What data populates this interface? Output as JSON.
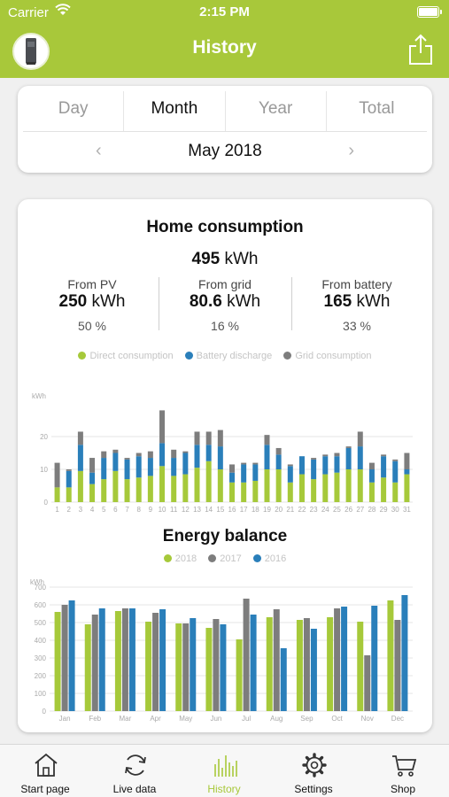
{
  "status_bar": {
    "carrier": "Carrier",
    "time": "2:15 PM"
  },
  "header": {
    "title": "History"
  },
  "period_selector": {
    "tabs": [
      {
        "label": "Day",
        "active": false
      },
      {
        "label": "Month",
        "active": true
      },
      {
        "label": "Year",
        "active": false
      },
      {
        "label": "Total",
        "active": false
      }
    ],
    "current_period": "May 2018"
  },
  "home_consumption": {
    "title": "Home consumption",
    "total_value": "495",
    "total_unit": "kWh",
    "stats": [
      {
        "label": "From PV",
        "value": "250",
        "unit": "kWh",
        "percent": "50 %"
      },
      {
        "label": "From grid",
        "value": "80.6",
        "unit": "kWh",
        "percent": "16 %"
      },
      {
        "label": "From battery",
        "value": "165",
        "unit": "kWh",
        "percent": "33 %"
      }
    ],
    "legend": [
      {
        "label": "Direct consumption",
        "color": "#a6c93a"
      },
      {
        "label": "Battery discharge",
        "color": "#2a7fba"
      },
      {
        "label": "Grid consumption",
        "color": "#7d7d7d"
      }
    ]
  },
  "energy_balance": {
    "title": "Energy balance"
  },
  "chart_data": [
    {
      "type": "bar",
      "stacked": true,
      "ylabel": "kWh",
      "ylim": [
        0,
        30
      ],
      "yticks": [
        0,
        10,
        20
      ],
      "categories": [
        "1",
        "2",
        "3",
        "4",
        "5",
        "6",
        "7",
        "8",
        "9",
        "10",
        "11",
        "12",
        "13",
        "14",
        "15",
        "16",
        "17",
        "18",
        "19",
        "20",
        "21",
        "22",
        "23",
        "24",
        "25",
        "26",
        "27",
        "28",
        "29",
        "30",
        "31"
      ],
      "series": [
        {
          "name": "Direct consumption",
          "color": "#a6c93a",
          "values": [
            4.5,
            4.5,
            9.5,
            5.5,
            7,
            9.5,
            7,
            7.5,
            8,
            11,
            8,
            8.5,
            10.5,
            12.5,
            10,
            6,
            6,
            6.5,
            10,
            10,
            6,
            8.5,
            7,
            8.5,
            9,
            10,
            10,
            6,
            7.5,
            6,
            8.5
          ]
        },
        {
          "name": "Battery discharge",
          "color": "#2a7fba",
          "values": [
            0,
            5,
            8,
            3.5,
            6.5,
            5.5,
            6,
            6.5,
            5.5,
            7,
            5.5,
            6.5,
            7,
            5,
            7,
            3,
            5.5,
            5,
            7.5,
            4.5,
            5,
            5.5,
            6,
            5.5,
            5,
            6.5,
            7,
            4,
            6.5,
            6.5,
            1.5
          ]
        },
        {
          "name": "Grid consumption",
          "color": "#7d7d7d",
          "values": [
            7.5,
            0.5,
            4,
            4.5,
            2,
            1,
            0.5,
            1,
            2,
            10,
            2.5,
            0.5,
            4,
            4,
            5,
            2.5,
            0.5,
            0.5,
            3,
            2,
            0.5,
            0,
            0.5,
            0.5,
            1,
            0.5,
            4.5,
            2,
            0.5,
            0.5,
            5
          ]
        }
      ]
    },
    {
      "type": "bar",
      "stacked": false,
      "ylabel": "kWh",
      "ylim": [
        0,
        700
      ],
      "yticks": [
        0,
        100,
        200,
        300,
        400,
        500,
        600,
        700
      ],
      "categories": [
        "Jan",
        "Feb",
        "Mar",
        "Apr",
        "May",
        "Jun",
        "Jul",
        "Aug",
        "Sep",
        "Oct",
        "Nov",
        "Dec"
      ],
      "series": [
        {
          "name": "2018",
          "color": "#a6c93a",
          "values": [
            560,
            490,
            565,
            505,
            495,
            470,
            405,
            530,
            515,
            530,
            505,
            625
          ]
        },
        {
          "name": "2017",
          "color": "#7d7d7d",
          "values": [
            600,
            545,
            580,
            555,
            495,
            520,
            635,
            575,
            525,
            580,
            315,
            515
          ]
        },
        {
          "name": "2016",
          "color": "#2a7fba",
          "values": [
            625,
            580,
            580,
            575,
            525,
            490,
            545,
            355,
            465,
            590,
            595,
            655
          ]
        }
      ]
    }
  ],
  "tabbar": {
    "items": [
      {
        "label": "Start page",
        "icon": "house-icon",
        "active": false
      },
      {
        "label": "Live data",
        "icon": "refresh-icon",
        "active": false
      },
      {
        "label": "History",
        "icon": "bar-chart-icon",
        "active": true
      },
      {
        "label": "Settings",
        "icon": "gear-icon",
        "active": false
      },
      {
        "label": "Shop",
        "icon": "cart-icon",
        "active": false
      }
    ]
  }
}
